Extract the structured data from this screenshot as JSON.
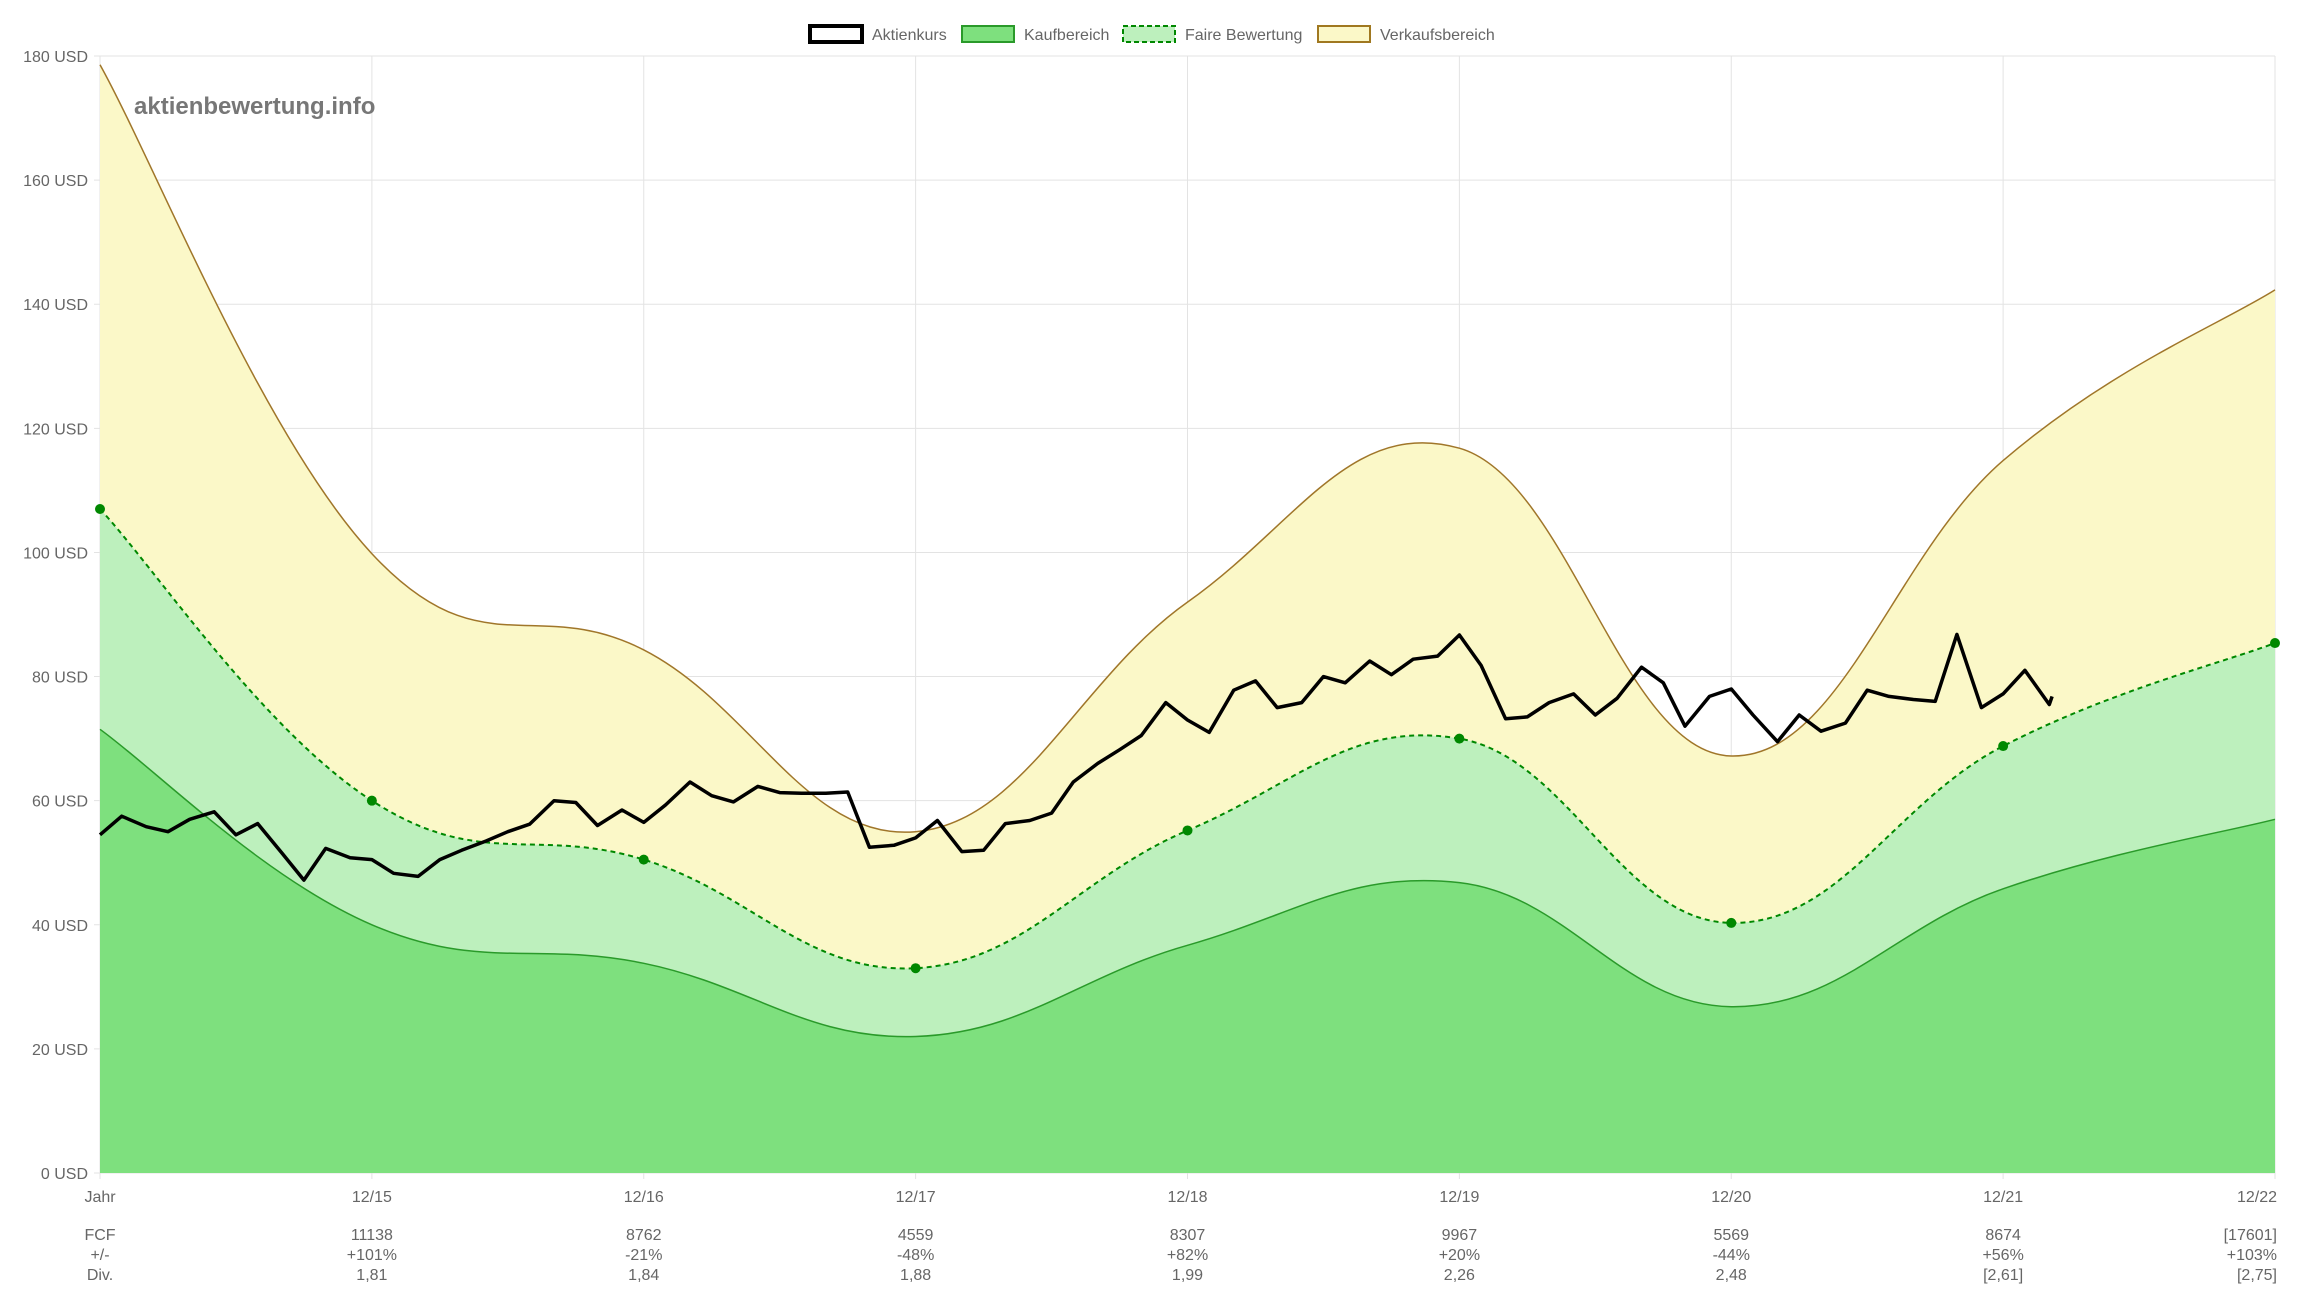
{
  "chart_data": {
    "type": "area",
    "watermark": "aktienbewertung.info",
    "legend": [
      {
        "key": "price",
        "label": "Aktienkurs",
        "fill": "#ffffff",
        "stroke": "#000000"
      },
      {
        "key": "buy",
        "label": "Kaufbereich",
        "fill": "#7ee07e",
        "stroke": "#2a9a2a"
      },
      {
        "key": "fair",
        "label": "Faire Bewertung",
        "fill": "#bdf0bd",
        "stroke": "#008800"
      },
      {
        "key": "sell",
        "label": "Verkaufsbereich",
        "fill": "#fbf8c8",
        "stroke": "#a07820"
      }
    ],
    "colors": {
      "buy_fill": "#7ee07e",
      "buy_line": "#2a9a2a",
      "fair_fill": "#bdf0bd",
      "fair_line": "#008800",
      "sell_fill": "#fbf8c8",
      "sell_line": "#a0762a",
      "price_line": "#000000",
      "grid": "#e3e3e3",
      "text": "#666666"
    },
    "ylim": [
      0,
      180
    ],
    "xlim": [
      2014.0,
      2022.0
    ],
    "y_ticks": [
      {
        "value": 0,
        "label": "0 USD"
      },
      {
        "value": 20,
        "label": "20 USD"
      },
      {
        "value": 40,
        "label": "40 USD"
      },
      {
        "value": 60,
        "label": "60 USD"
      },
      {
        "value": 80,
        "label": "80 USD"
      },
      {
        "value": 100,
        "label": "100 USD"
      },
      {
        "value": 120,
        "label": "120 USD"
      },
      {
        "value": 140,
        "label": "140 USD"
      },
      {
        "value": 160,
        "label": "160 USD"
      },
      {
        "value": 180,
        "label": "180 USD"
      }
    ],
    "x_ticks": [
      {
        "x": 2014.0,
        "label": "Jahr"
      },
      {
        "x": 2015.0,
        "label": "12/15"
      },
      {
        "x": 2016.0,
        "label": "12/16"
      },
      {
        "x": 2017.0,
        "label": "12/17"
      },
      {
        "x": 2018.0,
        "label": "12/18"
      },
      {
        "x": 2019.0,
        "label": "12/19"
      },
      {
        "x": 2020.0,
        "label": "12/20"
      },
      {
        "x": 2021.0,
        "label": "12/21"
      },
      {
        "x": 2022.0,
        "label": "12/22"
      }
    ],
    "table_rows": [
      {
        "label": "FCF",
        "values": [
          "11138",
          "8762",
          "4559",
          "8307",
          "9967",
          "5569",
          "8674",
          "[17601]"
        ]
      },
      {
        "label": "+/-",
        "values": [
          "+101%",
          "-21%",
          "-48%",
          "+82%",
          "+20%",
          "-44%",
          "+56%",
          "+103%"
        ]
      },
      {
        "label": "Div.",
        "values": [
          "1,81",
          "1,84",
          "1,88",
          "1,99",
          "2,26",
          "2,48",
          "[2,61]",
          "[2,75]"
        ]
      }
    ],
    "x": [
      2014.0,
      2015.0,
      2016.0,
      2017.0,
      2018.0,
      2019.0,
      2020.0,
      2021.0,
      2022.0
    ],
    "series": [
      {
        "name": "Kaufbereich",
        "values": [
          71.5,
          40.0,
          33.8,
          22.0,
          36.7,
          46.8,
          26.8,
          45.8,
          57.0
        ]
      },
      {
        "name": "Faire Bewertung",
        "values": [
          107.0,
          60.0,
          50.5,
          33.0,
          55.2,
          70.0,
          40.3,
          68.8,
          85.4
        ]
      },
      {
        "name": "Verkaufsbereich",
        "values": [
          178.6,
          99.8,
          84.3,
          55.0,
          92.0,
          116.8,
          67.2,
          114.8,
          142.3
        ]
      }
    ],
    "price": {
      "name": "Aktienkurs",
      "points": [
        [
          2014.0,
          54.5
        ],
        [
          2014.08,
          57.5
        ],
        [
          2014.17,
          55.8
        ],
        [
          2014.25,
          55.0
        ],
        [
          2014.33,
          57.0
        ],
        [
          2014.42,
          58.2
        ],
        [
          2014.5,
          54.5
        ],
        [
          2014.58,
          56.3
        ],
        [
          2014.67,
          51.5
        ],
        [
          2014.75,
          47.2
        ],
        [
          2014.83,
          52.3
        ],
        [
          2014.92,
          50.8
        ],
        [
          2015.0,
          50.5
        ],
        [
          2015.08,
          48.3
        ],
        [
          2015.17,
          47.8
        ],
        [
          2015.25,
          50.5
        ],
        [
          2015.33,
          52.0
        ],
        [
          2015.42,
          53.5
        ],
        [
          2015.5,
          55.0
        ],
        [
          2015.58,
          56.2
        ],
        [
          2015.67,
          60.0
        ],
        [
          2015.75,
          59.7
        ],
        [
          2015.83,
          56.0
        ],
        [
          2015.92,
          58.5
        ],
        [
          2016.0,
          56.5
        ],
        [
          2016.08,
          59.3
        ],
        [
          2016.17,
          63.0
        ],
        [
          2016.25,
          60.8
        ],
        [
          2016.33,
          59.8
        ],
        [
          2016.42,
          62.3
        ],
        [
          2016.5,
          61.3
        ],
        [
          2016.58,
          61.2
        ],
        [
          2016.67,
          61.2
        ],
        [
          2016.75,
          61.4
        ],
        [
          2016.83,
          52.5
        ],
        [
          2016.92,
          52.8
        ],
        [
          2017.0,
          54.0
        ],
        [
          2017.08,
          56.8
        ],
        [
          2017.17,
          51.8
        ],
        [
          2017.25,
          52.0
        ],
        [
          2017.33,
          56.3
        ],
        [
          2017.42,
          56.8
        ],
        [
          2017.5,
          58.0
        ],
        [
          2017.58,
          63.0
        ],
        [
          2017.67,
          66.0
        ],
        [
          2017.75,
          68.2
        ],
        [
          2017.83,
          70.5
        ],
        [
          2017.92,
          75.8
        ],
        [
          2018.0,
          73.0
        ],
        [
          2018.08,
          71.0
        ],
        [
          2018.17,
          77.8
        ],
        [
          2018.25,
          79.3
        ],
        [
          2018.33,
          75.0
        ],
        [
          2018.42,
          75.8
        ],
        [
          2018.5,
          80.0
        ],
        [
          2018.58,
          79.0
        ],
        [
          2018.67,
          82.5
        ],
        [
          2018.75,
          80.3
        ],
        [
          2018.83,
          82.8
        ],
        [
          2018.92,
          83.3
        ],
        [
          2019.0,
          86.7
        ],
        [
          2019.08,
          81.8
        ],
        [
          2019.17,
          73.2
        ],
        [
          2019.25,
          73.5
        ],
        [
          2019.33,
          75.8
        ],
        [
          2019.42,
          77.2
        ],
        [
          2019.5,
          73.8
        ],
        [
          2019.58,
          76.5
        ],
        [
          2019.67,
          81.5
        ],
        [
          2019.75,
          79.0
        ],
        [
          2019.83,
          72.0
        ],
        [
          2019.92,
          76.8
        ],
        [
          2020.0,
          78.0
        ],
        [
          2020.08,
          73.8
        ],
        [
          2020.17,
          69.5
        ],
        [
          2020.25,
          73.8
        ],
        [
          2020.33,
          71.2
        ],
        [
          2020.42,
          72.5
        ],
        [
          2020.5,
          77.8
        ],
        [
          2020.58,
          76.8
        ],
        [
          2020.67,
          76.3
        ],
        [
          2020.75,
          76.0
        ],
        [
          2020.83,
          86.8
        ],
        [
          2020.92,
          75.0
        ],
        [
          2021.0,
          77.2
        ],
        [
          2021.08,
          81.0
        ],
        [
          2021.17,
          75.5
        ],
        [
          2021.18,
          76.8
        ]
      ]
    }
  }
}
